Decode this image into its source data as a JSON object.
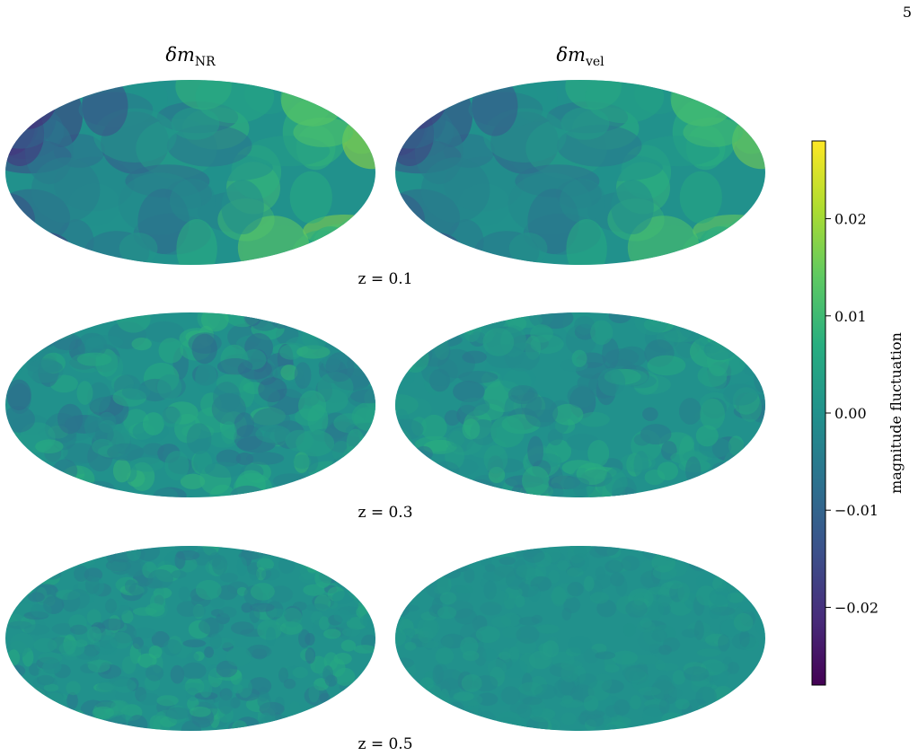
{
  "page_number": "5",
  "columns": [
    {
      "symbol": "δm",
      "subscript": "NR"
    },
    {
      "symbol": "δm",
      "subscript": "vel"
    }
  ],
  "rows": [
    {
      "label": "z = 0.1"
    },
    {
      "label": "z = 0.3"
    },
    {
      "label": "z = 0.5"
    }
  ],
  "chart_data": {
    "type": "heatmap",
    "projection": "mollweide",
    "grid_rows": 3,
    "grid_cols": 2,
    "colormap": "viridis",
    "colorbar": {
      "label": "magnitude fluctuation",
      "range": [
        -0.028,
        0.028
      ],
      "ticks": [
        0.02,
        0.01,
        0.0,
        -0.01,
        -0.02
      ],
      "tick_labels": [
        "0.02",
        "0.01",
        "0.00",
        "−0.01",
        "−0.02"
      ],
      "placement": "right"
    },
    "panels": [
      {
        "row": "z = 0.1",
        "column": "NR",
        "amplitude": 0.028
      },
      {
        "row": "z = 0.1",
        "column": "vel",
        "amplitude": 0.024
      },
      {
        "row": "z = 0.3",
        "column": "NR",
        "amplitude": 0.009
      },
      {
        "row": "z = 0.3",
        "column": "vel",
        "amplitude": 0.008
      },
      {
        "row": "z = 0.5",
        "column": "NR",
        "amplitude": 0.007
      },
      {
        "row": "z = 0.5",
        "column": "vel",
        "amplitude": 0.003
      }
    ]
  }
}
